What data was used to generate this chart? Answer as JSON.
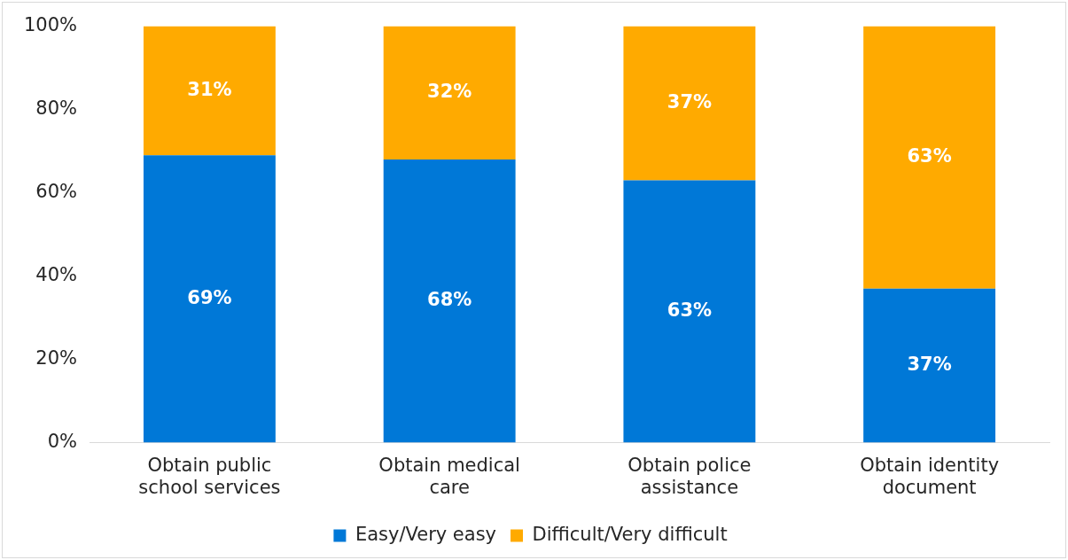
{
  "chart_data": {
    "type": "bar",
    "stacked": true,
    "categories": [
      "Obtain public school services",
      "Obtain medical care",
      "Obtain police assistance",
      "Obtain identity document"
    ],
    "series": [
      {
        "name": "Easy/Very easy",
        "color": "#0078d7",
        "values": [
          69,
          68,
          63,
          37
        ],
        "value_labels": [
          "69%",
          "68%",
          "63%",
          "37%"
        ]
      },
      {
        "name": "Difficult/Very difficult",
        "color": "#ffaa00",
        "values": [
          31,
          32,
          37,
          63
        ],
        "value_labels": [
          "31%",
          "32%",
          "37%",
          "63%"
        ]
      }
    ],
    "ylim": [
      0,
      100
    ],
    "yticks": [
      {
        "value": 0,
        "label": "0%"
      },
      {
        "value": 20,
        "label": "20%"
      },
      {
        "value": 40,
        "label": "40%"
      },
      {
        "value": 60,
        "label": "60%"
      },
      {
        "value": 80,
        "label": "80%"
      },
      {
        "value": 100,
        "label": "100%"
      }
    ],
    "grid": false,
    "legend": "bottom"
  }
}
